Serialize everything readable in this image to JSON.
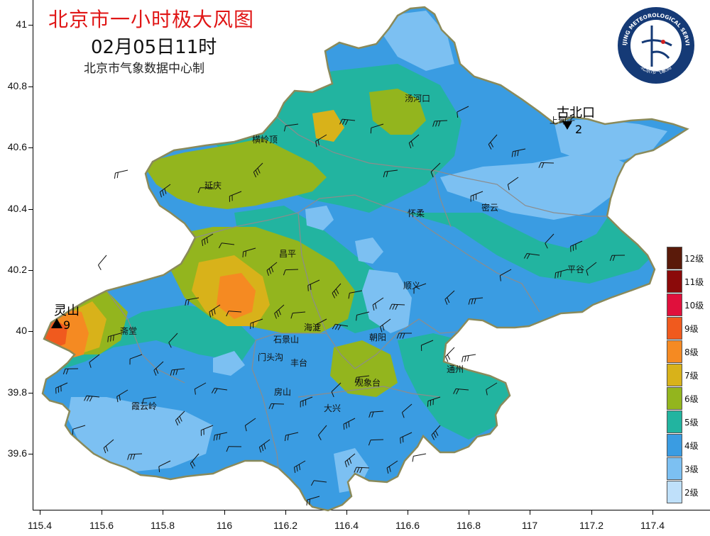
{
  "title": "北京市一小时极大风图",
  "time": "02月05日11时",
  "producer": "北京市气象数据中心制",
  "logo": {
    "text_top": "BEIJING METEOROLOGICAL SERVICE",
    "text_bottom": "北京市气象局"
  },
  "axes": {
    "y_ticks": [
      "41",
      "40.8",
      "40.6",
      "40.4",
      "40.2",
      "40",
      "39.8",
      "39.6"
    ],
    "x_ticks": [
      "115.4",
      "115.6",
      "115.8",
      "116",
      "116.2",
      "116.4",
      "116.6",
      "116.8",
      "117",
      "117.2",
      "117.4"
    ]
  },
  "legend": [
    {
      "label": "12级",
      "color": "#5a1a0a"
    },
    {
      "label": "11级",
      "color": "#8b0a0a"
    },
    {
      "label": "10级",
      "color": "#e0103c"
    },
    {
      "label": "9级",
      "color": "#f05a1e"
    },
    {
      "label": "8级",
      "color": "#f58a22"
    },
    {
      "label": "7级",
      "color": "#d8b21a"
    },
    {
      "label": "6级",
      "color": "#93b51e"
    },
    {
      "label": "5级",
      "color": "#22b4a0"
    },
    {
      "label": "4级",
      "color": "#3a9ce2"
    },
    {
      "label": "3级",
      "color": "#7cc0f2"
    },
    {
      "label": "2级",
      "color": "#bfe0fa"
    }
  ],
  "places": [
    "汤河口",
    "横岭顶",
    "延庆",
    "怀柔",
    "密云",
    "上甸子",
    "昌平",
    "平谷",
    "顺义",
    "海淀",
    "朝阳",
    "石景山",
    "门头沟",
    "丰台",
    "通州",
    "观象台",
    "房山",
    "大兴",
    "霞云岭",
    "斋堂"
  ],
  "markers": {
    "max": {
      "name": "灵山",
      "value": "9"
    },
    "min": {
      "name": "古北口",
      "value": "2"
    }
  }
}
